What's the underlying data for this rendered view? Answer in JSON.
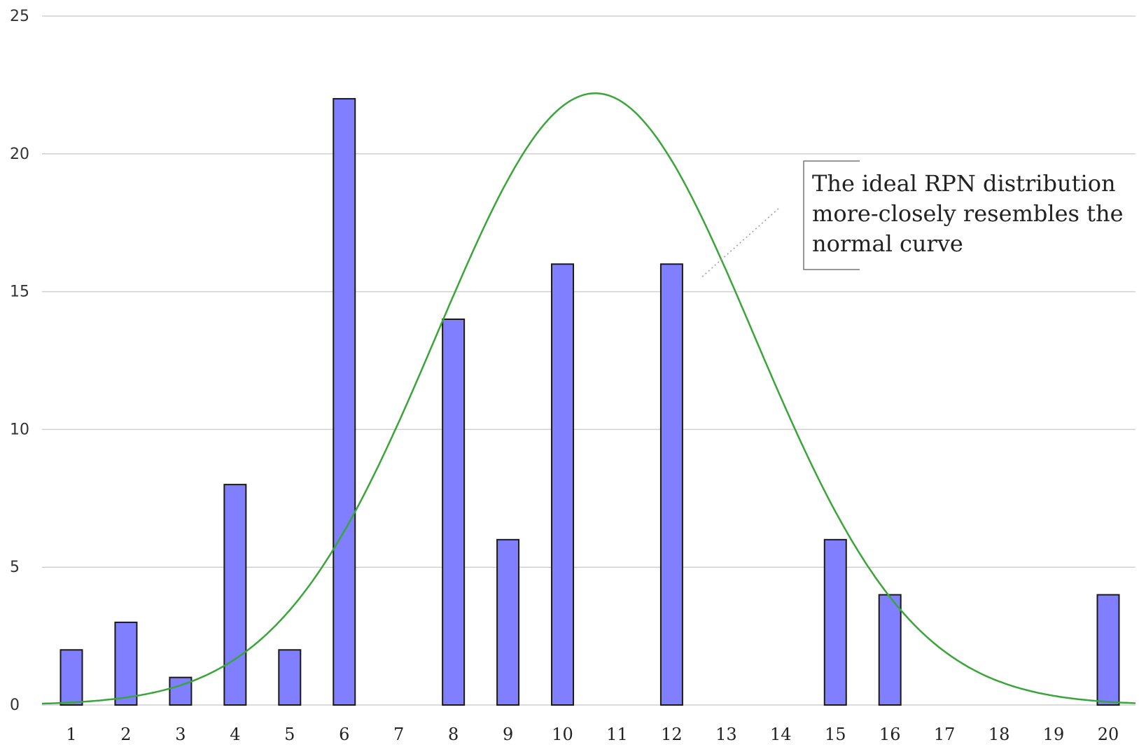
{
  "chart_data": {
    "type": "bar",
    "title": "",
    "xlabel": "",
    "ylabel": "",
    "ylim": [
      0,
      25
    ],
    "yticks": [
      0,
      5,
      10,
      15,
      20,
      25
    ],
    "grid": true,
    "categories": [
      "1",
      "2",
      "3",
      "4",
      "5",
      "6",
      "7",
      "8",
      "9",
      "10",
      "11",
      "12",
      "13",
      "14",
      "15",
      "16",
      "17",
      "18",
      "19",
      "20"
    ],
    "values": [
      2,
      3,
      1,
      8,
      2,
      22,
      0,
      14,
      6,
      16,
      0,
      16,
      0,
      0,
      6,
      4,
      0,
      0,
      0,
      4
    ],
    "bar_color": "#7f7fff",
    "curve": {
      "type": "normal",
      "color": "#3aa53a",
      "mean": 10.6,
      "sd": 2.9,
      "peak": 22.2
    },
    "annotation": {
      "lines": [
        "The ideal RPN distribution",
        "more-closely resembles the",
        "normal curve"
      ]
    }
  }
}
